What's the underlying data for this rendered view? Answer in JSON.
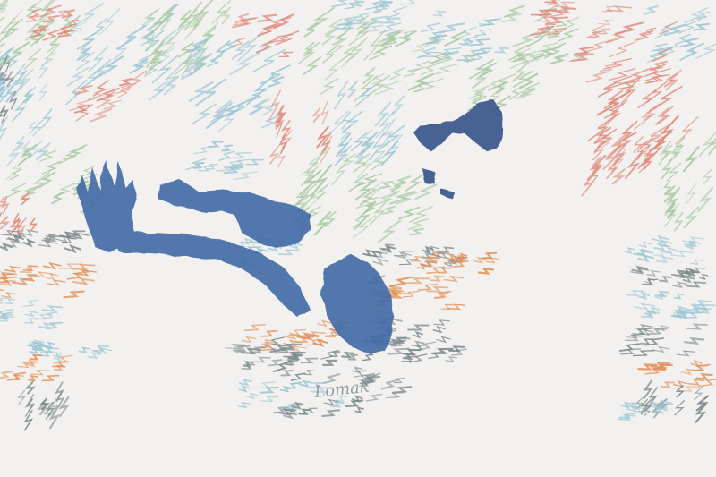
{
  "artwork": {
    "signature": "Lomak",
    "palette": {
      "background": "#f2f1ef",
      "light_blue": "#9cc6d4",
      "sage_green": "#a9c9a4",
      "coral": "#e08a7c",
      "orange": "#e39159",
      "slate_gray": "#7d8a8c",
      "indigo_wash": "#3f6aa6",
      "navy": "#34538a"
    },
    "figures": [
      "face-in-profile",
      "outstretched-arm-with-hand",
      "sleeve-cuff",
      "hand-holding-cup"
    ]
  }
}
